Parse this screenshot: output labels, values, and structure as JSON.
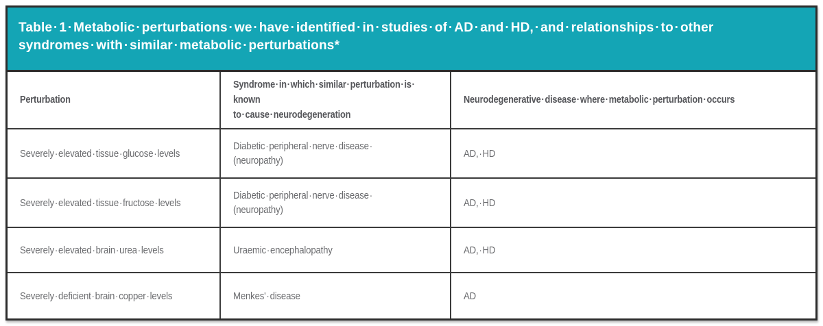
{
  "caption": "Table 1 Metabolic perturbations we have identified in studies of AD and HD, and relationships to other\nsyndromes with similar metabolic perturbations*",
  "colors": {
    "caption_band_bg": "#14a5b5",
    "caption_text": "#ffffff",
    "outer_border": "#2c2c2c",
    "cell_border": "#3b3b3b",
    "column_header_text": "#55565a",
    "body_text": "#6a6b6e"
  },
  "table": {
    "columns": [
      "Perturbation",
      "Syndrome in which similar perturbation is known\nto cause neurodegeneration",
      "Neurodegenerative disease where metabolic perturbation occurs"
    ],
    "rows": [
      [
        "Severely elevated tissue glucose levels",
        "Diabetic peripheral nerve disease (neuropathy)",
        "AD, HD"
      ],
      [
        "Severely elevated tissue fructose levels",
        "Diabetic peripheral nerve disease (neuropathy)",
        "AD, HD"
      ],
      [
        "Severely elevated brain urea levels",
        "Uraemic encephalopathy",
        "AD, HD"
      ],
      [
        "Severely deficient brain copper levels",
        "Menkes' disease",
        "AD"
      ]
    ]
  }
}
